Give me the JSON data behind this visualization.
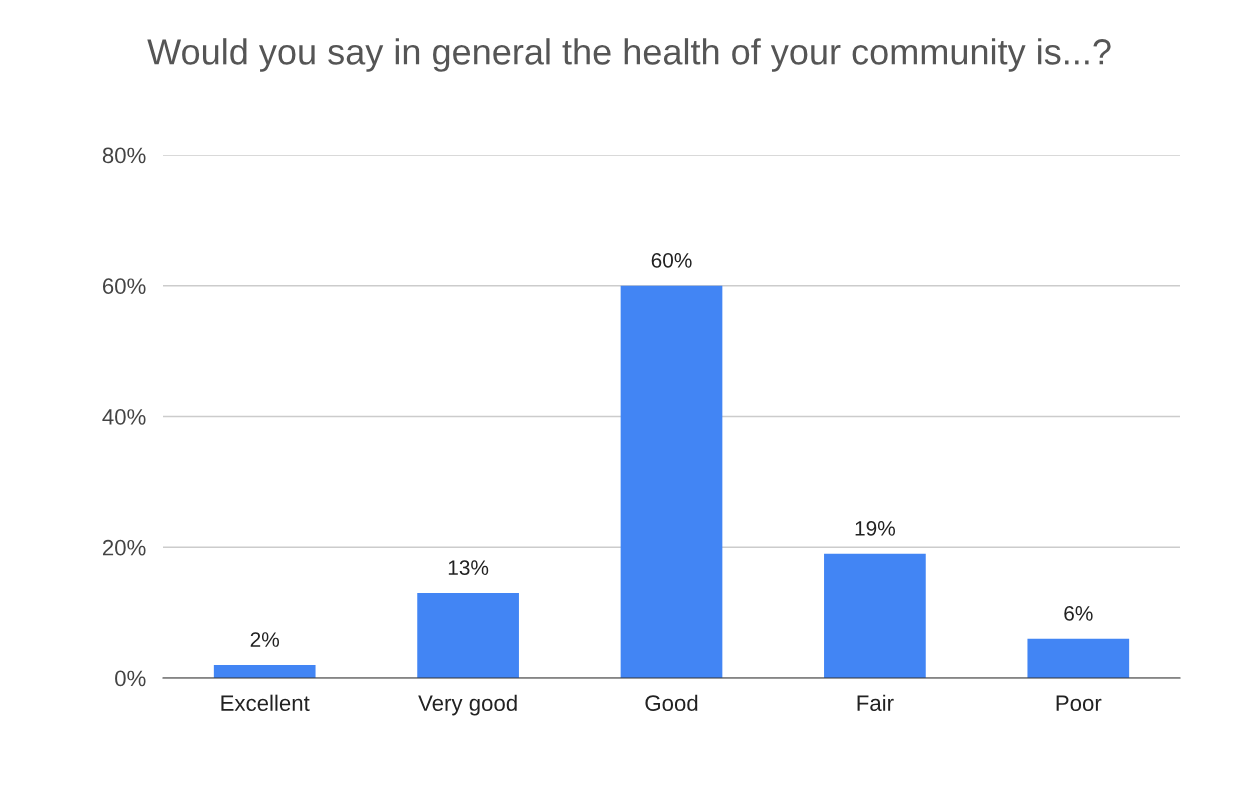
{
  "chart_data": {
    "type": "bar",
    "title": "Would you say in general the health of your community is...?",
    "categories": [
      "Excellent",
      "Very good",
      "Good",
      "Fair",
      "Poor"
    ],
    "values": [
      2,
      13,
      60,
      19,
      6
    ],
    "value_labels": [
      "2%",
      "13%",
      "60%",
      "19%",
      "6%"
    ],
    "color": "#4285f4",
    "ylim": [
      0,
      80
    ],
    "yticks": [
      {
        "value": 0,
        "label": "0%"
      },
      {
        "value": 20,
        "label": "20%"
      },
      {
        "value": 40,
        "label": "40%"
      },
      {
        "value": 60,
        "label": "60%"
      },
      {
        "value": 80,
        "label": "80%"
      }
    ],
    "grid": "y",
    "legend": false
  }
}
